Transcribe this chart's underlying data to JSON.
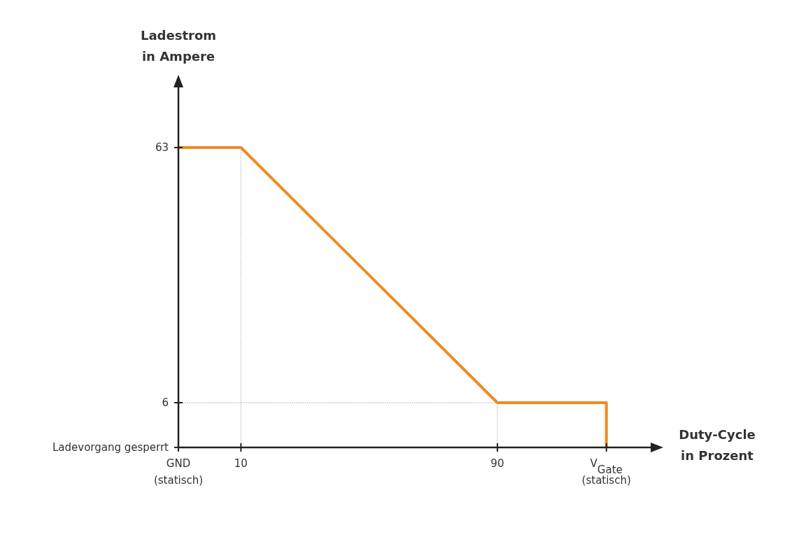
{
  "chart_data": {
    "type": "line",
    "xlabel": "Duty-Cycle\nin Prozent",
    "ylabel": "Ladestrom\nin Ampere",
    "xlim": [
      -9.5,
      140
    ],
    "ylim": [
      -4,
      78
    ],
    "xticks": [
      {
        "value": -9.5,
        "label": "GND\n(statisch)"
      },
      10,
      90,
      {
        "value": 124,
        "label": "V$_{Gate}$\n(statisch)"
      }
    ],
    "yticks": [
      {
        "value": -4,
        "label": "Ladevorgang gesperrt"
      },
      6,
      63
    ],
    "marker": "none",
    "series": [
      {
        "color": "#f08a24",
        "line_style": "solid",
        "x": [
          -9.5,
          10,
          90,
          124,
          124
        ],
        "values": [
          63,
          63,
          6,
          6,
          -4
        ]
      },
      {
        "color": "#aaaaaa",
        "line_style": "dotted",
        "x": [
          10,
          10
        ],
        "values": [
          63,
          -4
        ]
      },
      {
        "color": "#aaaaaa",
        "line_style": "dotted",
        "x": [
          -9.5,
          90
        ],
        "values": [
          6,
          6
        ]
      },
      {
        "color": "#aaaaaa",
        "line_style": "dotted",
        "x": [
          90,
          90
        ],
        "values": [
          6,
          -4
        ]
      }
    ]
  }
}
